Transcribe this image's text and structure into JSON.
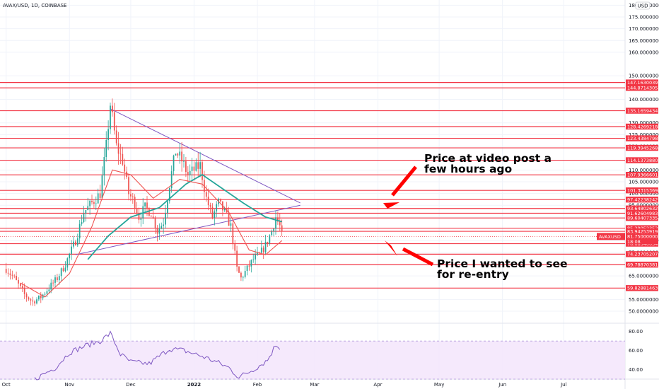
{
  "chart_data": {
    "type": "candlestick",
    "symbol": "AVAX/USD, 1D, COINBASE",
    "currency_badge": "USD",
    "price_axis": {
      "ylim": [
        47,
        181
      ],
      "ticks": [
        "180.0000000",
        "175.00000000",
        "170.00000000",
        "165.00000000",
        "160.00000000",
        "150.00000000",
        "140.00000000",
        "130.00000000",
        "125.00000000",
        "120.00000000",
        "110.00000000",
        "105.00000000",
        "100.00000000",
        "95.00000000",
        "90.00000000",
        "80.00000000",
        "75.00000000",
        "65.00000000",
        "55.00000000",
        "50.00000000"
      ]
    },
    "time_axis": {
      "start": "2021-09-28",
      "end": "2022-07-31",
      "ticks": [
        {
          "label": "Oct",
          "date": "2021-10-01"
        },
        {
          "label": "Nov",
          "date": "2021-11-01"
        },
        {
          "label": "Dec",
          "date": "2021-12-01"
        },
        {
          "label": "2022",
          "date": "2022-01-01"
        },
        {
          "label": "Feb",
          "date": "2022-02-01"
        },
        {
          "label": "Mar",
          "date": "2022-03-01"
        },
        {
          "label": "Apr",
          "date": "2022-04-01"
        },
        {
          "label": "May",
          "date": "2022-05-01"
        },
        {
          "label": "Jun",
          "date": "2022-06-01"
        },
        {
          "label": "Jul",
          "date": "2022-07-01"
        }
      ]
    },
    "price_path": [
      [
        "2021-10-01",
        68
      ],
      [
        "2021-10-05",
        64
      ],
      [
        "2021-10-10",
        57
      ],
      [
        "2021-10-14",
        54
      ],
      [
        "2021-10-18",
        56
      ],
      [
        "2021-10-22",
        60
      ],
      [
        "2021-10-26",
        64
      ],
      [
        "2021-10-30",
        70
      ],
      [
        "2021-11-04",
        80
      ],
      [
        "2021-11-08",
        92
      ],
      [
        "2021-11-12",
        96
      ],
      [
        "2021-11-16",
        100
      ],
      [
        "2021-11-19",
        120
      ],
      [
        "2021-11-21",
        138
      ],
      [
        "2021-11-24",
        120
      ],
      [
        "2021-11-27",
        114
      ],
      [
        "2021-11-30",
        100
      ],
      [
        "2021-12-03",
        96
      ],
      [
        "2021-12-05",
        90
      ],
      [
        "2021-12-08",
        94
      ],
      [
        "2021-12-11",
        92
      ],
      [
        "2021-12-14",
        84
      ],
      [
        "2021-12-17",
        88
      ],
      [
        "2021-12-20",
        104
      ],
      [
        "2021-12-23",
        118
      ],
      [
        "2021-12-26",
        114
      ],
      [
        "2021-12-29",
        108
      ],
      [
        "2022-01-01",
        110
      ],
      [
        "2022-01-04",
        112
      ],
      [
        "2022-01-07",
        98
      ],
      [
        "2022-01-10",
        90
      ],
      [
        "2022-01-13",
        96
      ],
      [
        "2022-01-16",
        92
      ],
      [
        "2022-01-19",
        86
      ],
      [
        "2022-01-22",
        68
      ],
      [
        "2022-01-24",
        64
      ],
      [
        "2022-01-27",
        68
      ],
      [
        "2022-01-30",
        72
      ],
      [
        "2022-02-02",
        74
      ],
      [
        "2022-02-05",
        78
      ],
      [
        "2022-02-08",
        84
      ],
      [
        "2022-02-10",
        90
      ],
      [
        "2022-02-12",
        86
      ],
      [
        "2022-02-13",
        82
      ]
    ],
    "moving_averages": [
      {
        "color": "#26a69a",
        "points": [
          [
            "2021-11-10",
            72
          ],
          [
            "2021-11-20",
            82
          ],
          [
            "2021-12-01",
            90
          ],
          [
            "2021-12-15",
            94
          ],
          [
            "2021-12-28",
            104
          ],
          [
            "2022-01-05",
            108
          ],
          [
            "2022-01-15",
            102
          ],
          [
            "2022-01-25",
            96
          ],
          [
            "2022-02-05",
            90
          ],
          [
            "2022-02-13",
            88
          ]
        ]
      },
      {
        "color": "#ef5350",
        "points": [
          [
            "2021-10-08",
            62
          ],
          [
            "2021-10-20",
            56
          ],
          [
            "2021-11-01",
            66
          ],
          [
            "2021-11-12",
            86
          ],
          [
            "2021-11-22",
            110
          ],
          [
            "2021-12-01",
            108
          ],
          [
            "2021-12-12",
            98
          ],
          [
            "2021-12-25",
            106
          ],
          [
            "2022-01-05",
            104
          ],
          [
            "2022-01-18",
            92
          ],
          [
            "2022-01-28",
            76
          ],
          [
            "2022-02-05",
            74
          ],
          [
            "2022-02-13",
            80
          ]
        ]
      }
    ],
    "horizontal_levels": [
      "147.16300392",
      "144.87143057",
      "135.16594345",
      "128.42692184",
      "123.43847984",
      "119.39452688",
      "114.13738802",
      "107.93666013",
      "101.33153695",
      "97.42238242",
      "93.64802632",
      "91.62604983",
      "89.60407335",
      "85.29052352",
      "83.94253919",
      "78.68540034",
      "74.23705207",
      "69.78870381",
      "59.82881463"
    ],
    "last_price": {
      "symbol": "AVAXUSD",
      "value": "81.75000000",
      "countdown": "18:08"
    },
    "trendlines": [
      {
        "start": [
          "2021-11-21",
          136
        ],
        "end": [
          "2022-02-22",
          96
        ]
      },
      {
        "start": [
          "2021-11-04",
          74
        ],
        "end": [
          "2022-02-22",
          95
        ]
      }
    ],
    "annotations": [
      {
        "lines": [
          "Price at video post a",
          "few hours ago"
        ]
      },
      {
        "lines": [
          "Price I wanted to see",
          "for re-entry"
        ]
      }
    ],
    "rsi": {
      "ylim": [
        33,
        82
      ],
      "band": [
        30,
        70
      ],
      "ticks": [
        "80.00",
        "60.00",
        "40.00"
      ],
      "points": [
        [
          "2021-10-15",
          30
        ],
        [
          "2021-10-25",
          42
        ],
        [
          "2021-11-01",
          58
        ],
        [
          "2021-11-10",
          66
        ],
        [
          "2021-11-16",
          70
        ],
        [
          "2021-11-21",
          78
        ],
        [
          "2021-11-26",
          56
        ],
        [
          "2021-12-01",
          48
        ],
        [
          "2021-12-10",
          46
        ],
        [
          "2021-12-20",
          62
        ],
        [
          "2021-12-27",
          60
        ],
        [
          "2022-01-05",
          54
        ],
        [
          "2022-01-12",
          48
        ],
        [
          "2022-01-18",
          42
        ],
        [
          "2022-01-23",
          32
        ],
        [
          "2022-01-30",
          40
        ],
        [
          "2022-02-06",
          50
        ],
        [
          "2022-02-10",
          66
        ],
        [
          "2022-02-13",
          62
        ]
      ]
    }
  }
}
